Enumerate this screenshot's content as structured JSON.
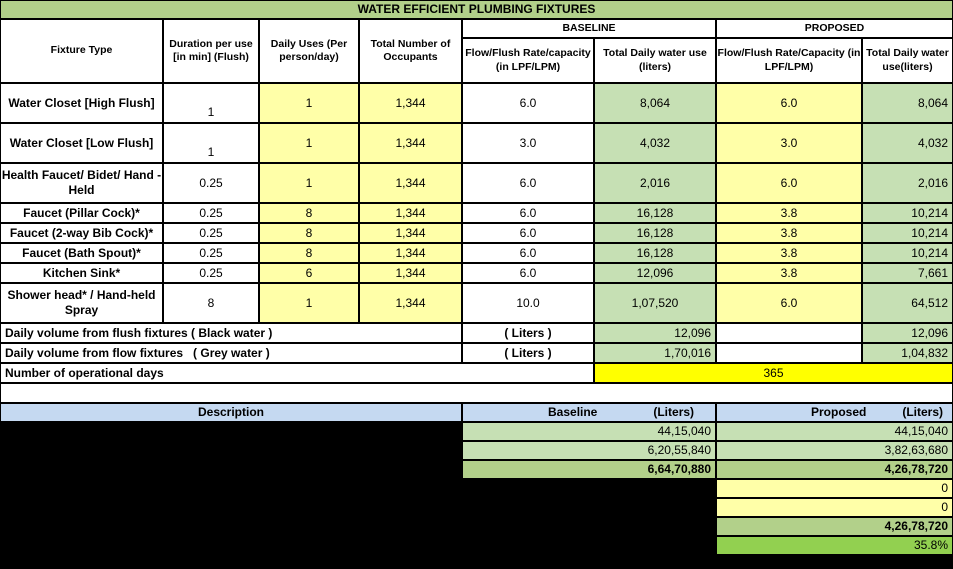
{
  "title": "WATER EFFICIENT PLUMBING FIXTURES",
  "headers": {
    "baseline": "BASELINE",
    "proposed": "PROPOSED",
    "fixture_type": "Fixture Type",
    "duration": "Duration per use [in min] (Flush)",
    "daily_uses": "Daily Uses (Per person/day)",
    "occupants": "Total Number of Occupants",
    "base_flow": "Flow/Flush Rate/capacity (in LPF/LPM)",
    "base_total": "Total Daily water use (liters)",
    "prop_flow": "Flow/Flush Rate/Capacity (in LPF/LPM)",
    "prop_total": "Total Daily water use(liters)"
  },
  "rows": [
    {
      "fixture": "Water Closet [High Flush]",
      "duration": "1",
      "uses": "1",
      "occupants": "1,344",
      "base_flow": "6.0",
      "base_total": "8,064",
      "prop_flow": "6.0",
      "prop_total": "8,064"
    },
    {
      "fixture": "Water Closet [Low Flush]",
      "duration": "1",
      "uses": "1",
      "occupants": "1,344",
      "base_flow": "3.0",
      "base_total": "4,032",
      "prop_flow": "3.0",
      "prop_total": "4,032"
    },
    {
      "fixture": "Health Faucet/ Bidet/ Hand - Held",
      "duration": "0.25",
      "uses": "1",
      "occupants": "1,344",
      "base_flow": "6.0",
      "base_total": "2,016",
      "prop_flow": "6.0",
      "prop_total": "2,016"
    },
    {
      "fixture": "Faucet (Pillar Cock)*",
      "duration": "0.25",
      "uses": "8",
      "occupants": "1,344",
      "base_flow": "6.0",
      "base_total": "16,128",
      "prop_flow": "3.8",
      "prop_total": "10,214"
    },
    {
      "fixture": "Faucet (2-way Bib Cock)*",
      "duration": "0.25",
      "uses": "8",
      "occupants": "1,344",
      "base_flow": "6.0",
      "base_total": "16,128",
      "prop_flow": "3.8",
      "prop_total": "10,214"
    },
    {
      "fixture": "Faucet (Bath Spout)*",
      "duration": "0.25",
      "uses": "8",
      "occupants": "1,344",
      "base_flow": "6.0",
      "base_total": "16,128",
      "prop_flow": "3.8",
      "prop_total": "10,214"
    },
    {
      "fixture": "Kitchen Sink*",
      "duration": "0.25",
      "uses": "6",
      "occupants": "1,344",
      "base_flow": "6.0",
      "base_total": "12,096",
      "prop_flow": "3.8",
      "prop_total": "7,661"
    },
    {
      "fixture": "Shower head* / Hand-held Spray",
      "duration": "8",
      "uses": "1",
      "occupants": "1,344",
      "base_flow": "10.0",
      "base_total": "1,07,520",
      "prop_flow": "6.0",
      "prop_total": "64,512"
    }
  ],
  "flush": {
    "label": "Daily volume from flush fixtures ( Black water )",
    "unit": "( Liters )",
    "baseline": "12,096",
    "proposed": "12,096"
  },
  "flow": {
    "label": "Daily volume from flow fixtures   ( Grey water )",
    "unit": "( Liters )",
    "baseline": "1,70,016",
    "proposed": "1,04,832"
  },
  "days": {
    "label": "Number of operational days",
    "value": "365"
  },
  "summary": {
    "description": "Description",
    "baseline_head": "Baseline",
    "baseline_unit": "(Liters)",
    "proposed_head": "Proposed",
    "proposed_unit": "(Liters)",
    "baseline_values": [
      "44,15,040",
      "6,20,55,840",
      "6,64,70,880"
    ],
    "proposed_values": [
      "44,15,040",
      "3,82,63,680",
      "4,26,78,720",
      "0",
      "0",
      "4,26,78,720",
      "35.8%"
    ]
  }
}
